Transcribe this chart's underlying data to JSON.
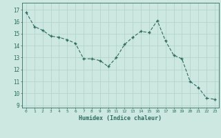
{
  "x": [
    0,
    1,
    2,
    3,
    4,
    5,
    6,
    7,
    8,
    9,
    10,
    11,
    12,
    13,
    14,
    15,
    16,
    17,
    18,
    19,
    20,
    21,
    22,
    23
  ],
  "y": [
    16.8,
    15.6,
    15.3,
    14.8,
    14.7,
    14.5,
    14.2,
    12.9,
    12.9,
    12.75,
    12.25,
    13.0,
    14.1,
    14.7,
    15.2,
    15.1,
    16.1,
    14.4,
    13.2,
    12.9,
    11.0,
    10.5,
    9.6,
    9.5
  ],
  "line_color": "#2e6b5e",
  "marker": "+",
  "bg_color": "#cce8e0",
  "grid_color": "#b0d0c8",
  "xlabel": "Humidex (Indice chaleur)",
  "ytick_labels": [
    "9",
    "10",
    "11",
    "12",
    "13",
    "14",
    "15",
    "16",
    "17"
  ],
  "ytick_vals": [
    9,
    10,
    11,
    12,
    13,
    14,
    15,
    16,
    17
  ],
  "ylim": [
    8.8,
    17.6
  ],
  "xlim": [
    -0.5,
    23.5
  ],
  "xtick_labels": [
    "0",
    "1",
    "2",
    "3",
    "4",
    "5",
    "6",
    "7",
    "8",
    "9",
    "10",
    "11",
    "12",
    "13",
    "14",
    "15",
    "16",
    "17",
    "18",
    "19",
    "20",
    "21",
    "22",
    "23"
  ]
}
